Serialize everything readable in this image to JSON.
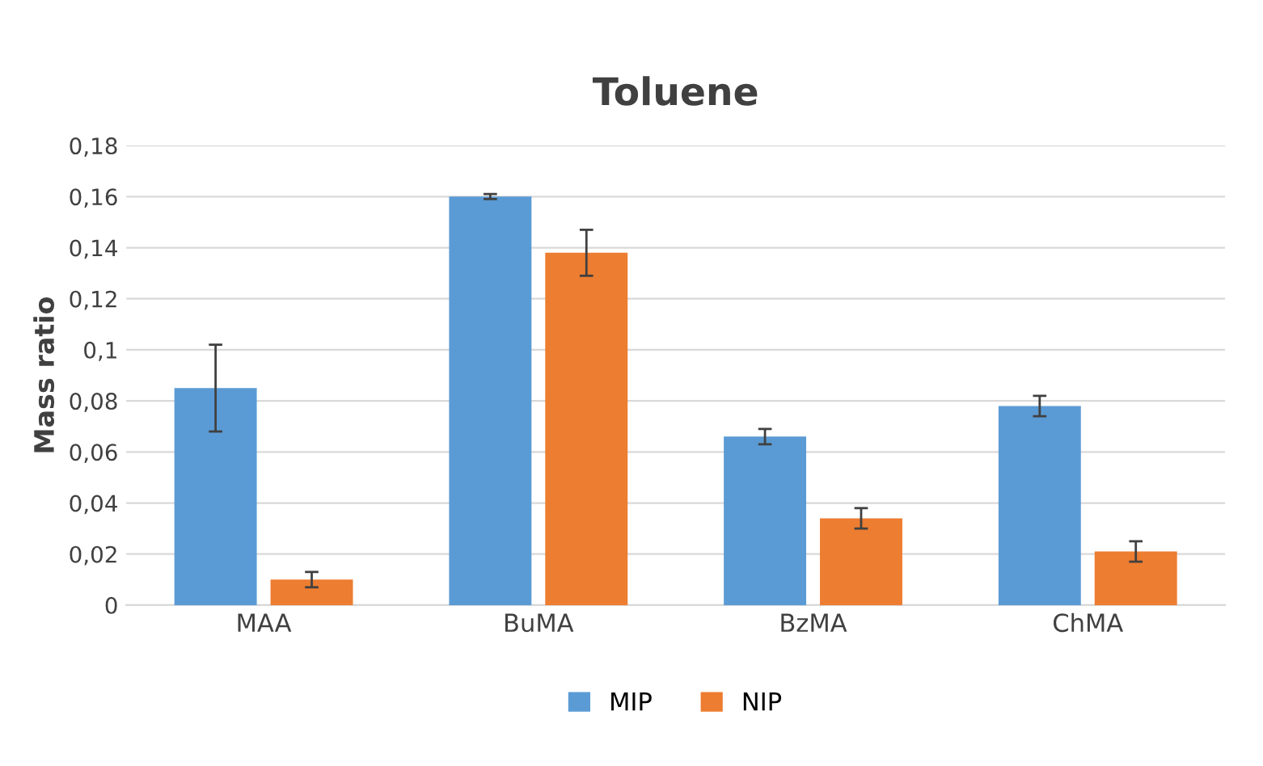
{
  "chart_data": {
    "type": "bar",
    "title": "Toluene",
    "ylabel": "Mass ratio",
    "categories": [
      "MAA",
      "BuMA",
      "BzMA",
      "ChMA"
    ],
    "series": [
      {
        "name": "MIP",
        "color": "#5b9bd5",
        "values": [
          0.085,
          0.16,
          0.066,
          0.078
        ],
        "errors": [
          0.017,
          0.001,
          0.003,
          0.004
        ]
      },
      {
        "name": "NIP",
        "color": "#ed7d31",
        "values": [
          0.01,
          0.138,
          0.034,
          0.021
        ],
        "errors": [
          0.003,
          0.009,
          0.004,
          0.004
        ]
      }
    ],
    "ylim": [
      0,
      0.18
    ],
    "yticks": [
      0,
      {
        "value": 0.02,
        "label": "0,02"
      },
      {
        "value": 0.04,
        "label": "0,04"
      },
      {
        "value": 0.06,
        "label": "0,06"
      },
      {
        "value": 0.08,
        "label": "0,08"
      },
      {
        "value": 0.1,
        "label": "0,1"
      },
      {
        "value": 0.12,
        "label": "0,12"
      },
      {
        "value": 0.14,
        "label": "0,14"
      },
      {
        "value": 0.16,
        "label": "0,16"
      },
      {
        "value": 0.18,
        "label": "0,18"
      }
    ],
    "grid": "y",
    "legend": "bottom"
  }
}
